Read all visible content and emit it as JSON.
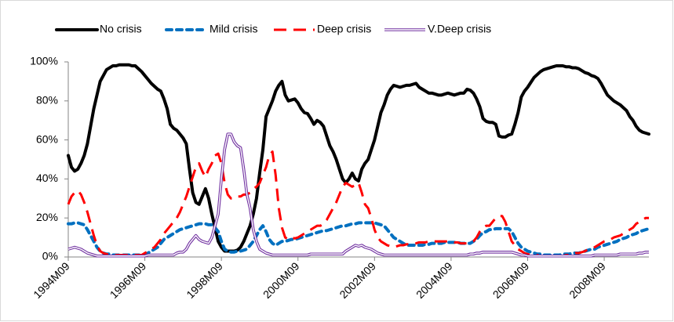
{
  "chart_data": {
    "type": "line",
    "categories": [
      "1994M09",
      null,
      null,
      null,
      null,
      null,
      null,
      null,
      null,
      null,
      null,
      null,
      null,
      null,
      null,
      null,
      null,
      null,
      null,
      null,
      null,
      null,
      null,
      null,
      "1996M09",
      null,
      null,
      null,
      null,
      null,
      null,
      null,
      null,
      null,
      null,
      null,
      null,
      null,
      null,
      null,
      null,
      null,
      null,
      null,
      null,
      null,
      null,
      null,
      "1998M09",
      null,
      null,
      null,
      null,
      null,
      null,
      null,
      null,
      null,
      null,
      null,
      null,
      null,
      null,
      null,
      null,
      null,
      null,
      null,
      null,
      null,
      null,
      null,
      "2000M09",
      null,
      null,
      null,
      null,
      null,
      null,
      null,
      null,
      null,
      null,
      null,
      null,
      null,
      null,
      null,
      null,
      null,
      null,
      null,
      null,
      null,
      null,
      null,
      "2002M09",
      null,
      null,
      null,
      null,
      null,
      null,
      null,
      null,
      null,
      null,
      null,
      null,
      null,
      null,
      null,
      null,
      null,
      null,
      null,
      null,
      null,
      null,
      null,
      "2004M09",
      null,
      null,
      null,
      null,
      null,
      null,
      null,
      null,
      null,
      null,
      null,
      null,
      null,
      null,
      null,
      null,
      null,
      null,
      null,
      null,
      null,
      null,
      null,
      "2006M09",
      null,
      null,
      null,
      null,
      null,
      null,
      null,
      null,
      null,
      null,
      null,
      null,
      null,
      null,
      null,
      null,
      null,
      null,
      null,
      null,
      null,
      null,
      null,
      "2008M09",
      null,
      null,
      null,
      null,
      null,
      null,
      null,
      null,
      null,
      null,
      null,
      null,
      null,
      null
    ],
    "series": [
      {
        "name": "No crisis",
        "color": "#000000",
        "line_style": "solid",
        "values": [
          52,
          46,
          44,
          45,
          48,
          52,
          58,
          67,
          76,
          83,
          90,
          93,
          96,
          97,
          98,
          98,
          98.5,
          98.5,
          98.5,
          98.5,
          98,
          98,
          96.5,
          95,
          93,
          91,
          89,
          87.5,
          86,
          85,
          81,
          76,
          68,
          66,
          65,
          63,
          61,
          58,
          45,
          33,
          28,
          27,
          31,
          35,
          30,
          22,
          15,
          8,
          5,
          3,
          3,
          3,
          3,
          3.5,
          5,
          8,
          12,
          16,
          22,
          30,
          43,
          55,
          72,
          76,
          80,
          85,
          88,
          90,
          83,
          80,
          80.5,
          81,
          79,
          76,
          74,
          73.5,
          71,
          68,
          70,
          69,
          67,
          62,
          57,
          54,
          50,
          45,
          40,
          38,
          40,
          43,
          40,
          39,
          45,
          48,
          50,
          55,
          60,
          67,
          74,
          78,
          83,
          86,
          88,
          87.5,
          87,
          87.5,
          88,
          88,
          88.5,
          89,
          87,
          86,
          85,
          84,
          84,
          83.5,
          83,
          83,
          83.5,
          84,
          83.5,
          83,
          83.5,
          84,
          84,
          86,
          85.5,
          84,
          81,
          77,
          71,
          69.5,
          69,
          69,
          68,
          62,
          61.5,
          61.5,
          62.5,
          63,
          68,
          74,
          82,
          85,
          87,
          89.5,
          92,
          93.5,
          95,
          96,
          96.5,
          97,
          97.5,
          98,
          98,
          98,
          97.5,
          97.5,
          97,
          97,
          96.5,
          95.5,
          94.5,
          94,
          93,
          92.5,
          91.5,
          89,
          86,
          83,
          81.5,
          80,
          79,
          78,
          76.5,
          75,
          72,
          70,
          67,
          65,
          64,
          63.5,
          63
        ]
      },
      {
        "name": "Mild crisis",
        "color": "#0070c0",
        "line_style": "dashed",
        "values": [
          17,
          17,
          17.5,
          17.5,
          17,
          16.5,
          14,
          11,
          8,
          5,
          3,
          2,
          1.5,
          1.5,
          1,
          1,
          1,
          1,
          1,
          1,
          1,
          1,
          1,
          1,
          1.5,
          2,
          3,
          4,
          5,
          7,
          9,
          10,
          11,
          12,
          13,
          14,
          14.5,
          15,
          15.5,
          16,
          16.5,
          17,
          17,
          17,
          16.5,
          16.5,
          15,
          13,
          8,
          4,
          3,
          2.5,
          2.5,
          3,
          3,
          3.5,
          4,
          6,
          8,
          11,
          14,
          16,
          13,
          9,
          7,
          6,
          7,
          8,
          8,
          8.5,
          9,
          9,
          9.5,
          10,
          10.5,
          11,
          11.5,
          12,
          12.5,
          13,
          13.5,
          13.5,
          14,
          14.5,
          15,
          15.5,
          16,
          16,
          16.5,
          17,
          17,
          17.5,
          17.5,
          17.5,
          17.5,
          17.5,
          17.5,
          17,
          16.5,
          16,
          14,
          12,
          10,
          9,
          8,
          7,
          6,
          6,
          6,
          6,
          6,
          6,
          6.5,
          6.5,
          7,
          7,
          7,
          7,
          7.5,
          7.5,
          7.5,
          7.5,
          7.5,
          7,
          7,
          7,
          7,
          8,
          9,
          11,
          12.5,
          13,
          14,
          14,
          14.5,
          14.5,
          14.5,
          14.5,
          14.5,
          13,
          10,
          7,
          5,
          4,
          3,
          2.5,
          2,
          1.5,
          1.5,
          1,
          1,
          1,
          1,
          1,
          1,
          1.5,
          1.5,
          1.5,
          2,
          2,
          2,
          2.5,
          3,
          3.5,
          4,
          4,
          5,
          5.5,
          6,
          6.5,
          7,
          7.5,
          8,
          9,
          9.5,
          10,
          11,
          11.5,
          12,
          13,
          13.5,
          14,
          14.5
        ]
      },
      {
        "name": "Deep crisis",
        "color": "#ff0000",
        "line_style": "long-dashed",
        "values": [
          27,
          31,
          33,
          34,
          32,
          28,
          23,
          17,
          11,
          6,
          3,
          2,
          1.5,
          1,
          1,
          1,
          1,
          1,
          1,
          1,
          1,
          1,
          1,
          1,
          2,
          3,
          4,
          5,
          7,
          9,
          12,
          14,
          16,
          18,
          20,
          23,
          27,
          31,
          36,
          41,
          46,
          48,
          44,
          41,
          45,
          48,
          52,
          53,
          48,
          38,
          32,
          30,
          30,
          31,
          31,
          32,
          32,
          33,
          35,
          36,
          38,
          42,
          46,
          52,
          54,
          42,
          25,
          15,
          10,
          9,
          10,
          9.5,
          10,
          11,
          12,
          13,
          14,
          15,
          16,
          16,
          17,
          19,
          22,
          25,
          28,
          32,
          36,
          38,
          37,
          36,
          37,
          38,
          33,
          27,
          25,
          20,
          14,
          10,
          8,
          7,
          6,
          5.5,
          5,
          5.5,
          6,
          6,
          6.5,
          6.5,
          7,
          7,
          7.5,
          7.5,
          7.5,
          8,
          8,
          8,
          8,
          8,
          8,
          8,
          8,
          7.5,
          7.5,
          7,
          7,
          7,
          7.5,
          8,
          10,
          13,
          15,
          16,
          16,
          18,
          20,
          21,
          21,
          18,
          13,
          8,
          6,
          4,
          3,
          2,
          1.5,
          1,
          1,
          1,
          0.5,
          0.5,
          0.5,
          0.5,
          0.5,
          0.5,
          0.5,
          0.5,
          1,
          1,
          1.5,
          2,
          2,
          2.5,
          3,
          4,
          4.5,
          5,
          6,
          7,
          8,
          8.5,
          9,
          10,
          10.5,
          11,
          12,
          13,
          14,
          15,
          17,
          18,
          19,
          20,
          20
        ]
      },
      {
        "name": "V.Deep crisis",
        "color": "#7030a0",
        "line_style": "double",
        "values": [
          4,
          4.5,
          5,
          4.5,
          4,
          3,
          2,
          1.5,
          1,
          0.5,
          0.5,
          0.5,
          0.5,
          0.5,
          0.5,
          0.5,
          0.5,
          0.5,
          0.5,
          0.5,
          0.5,
          0.5,
          0.5,
          0.5,
          0.5,
          1,
          1,
          1,
          1,
          1,
          1,
          1,
          1,
          1,
          2,
          2.5,
          2.5,
          4,
          7,
          9,
          11,
          9,
          8,
          7.5,
          7,
          10,
          16,
          22,
          40,
          55,
          63,
          63,
          59,
          57,
          56,
          45,
          32,
          25,
          14,
          8,
          4,
          3,
          2,
          1.5,
          1,
          1,
          1,
          1,
          1,
          1,
          1,
          1,
          1,
          1,
          1,
          1,
          1.5,
          1.5,
          1.5,
          1.5,
          1.5,
          1.5,
          1.5,
          1.5,
          1.5,
          1.5,
          1.5,
          3,
          4,
          5,
          6,
          5.5,
          6,
          5,
          4.5,
          4,
          3,
          2,
          1.5,
          1,
          1,
          1,
          1,
          1,
          1,
          1,
          1,
          1,
          1,
          1,
          1,
          1,
          1,
          1,
          1,
          1,
          1,
          1,
          1,
          1,
          1,
          1,
          1,
          1,
          1,
          1,
          1.5,
          1.5,
          2,
          2,
          2.5,
          2.5,
          2.5,
          2.5,
          2.5,
          2.5,
          2.5,
          2.5,
          2.5,
          2.5,
          2,
          1.5,
          1,
          1,
          0.5,
          0.5,
          0.5,
          0.5,
          0.5,
          0.5,
          0.5,
          0.5,
          0.5,
          0.5,
          0.5,
          0.5,
          0.5,
          0.5,
          0.5,
          0.5,
          0.5,
          0.5,
          0.5,
          0.5,
          0.5,
          1,
          1,
          1,
          1,
          1,
          1,
          1,
          1,
          1.5,
          1.5,
          1.5,
          1.5,
          1.5,
          1.5,
          2,
          2,
          2.5,
          2.5
        ]
      }
    ],
    "ylim": [
      0,
      100
    ],
    "yticks": [
      {
        "value": 0,
        "label": "0%"
      },
      {
        "value": 20,
        "label": "20%"
      },
      {
        "value": 40,
        "label": "40%"
      },
      {
        "value": 60,
        "label": "60%"
      },
      {
        "value": 80,
        "label": "80%"
      },
      {
        "value": 100,
        "label": "100%"
      }
    ],
    "grid": false,
    "legend": "top"
  }
}
